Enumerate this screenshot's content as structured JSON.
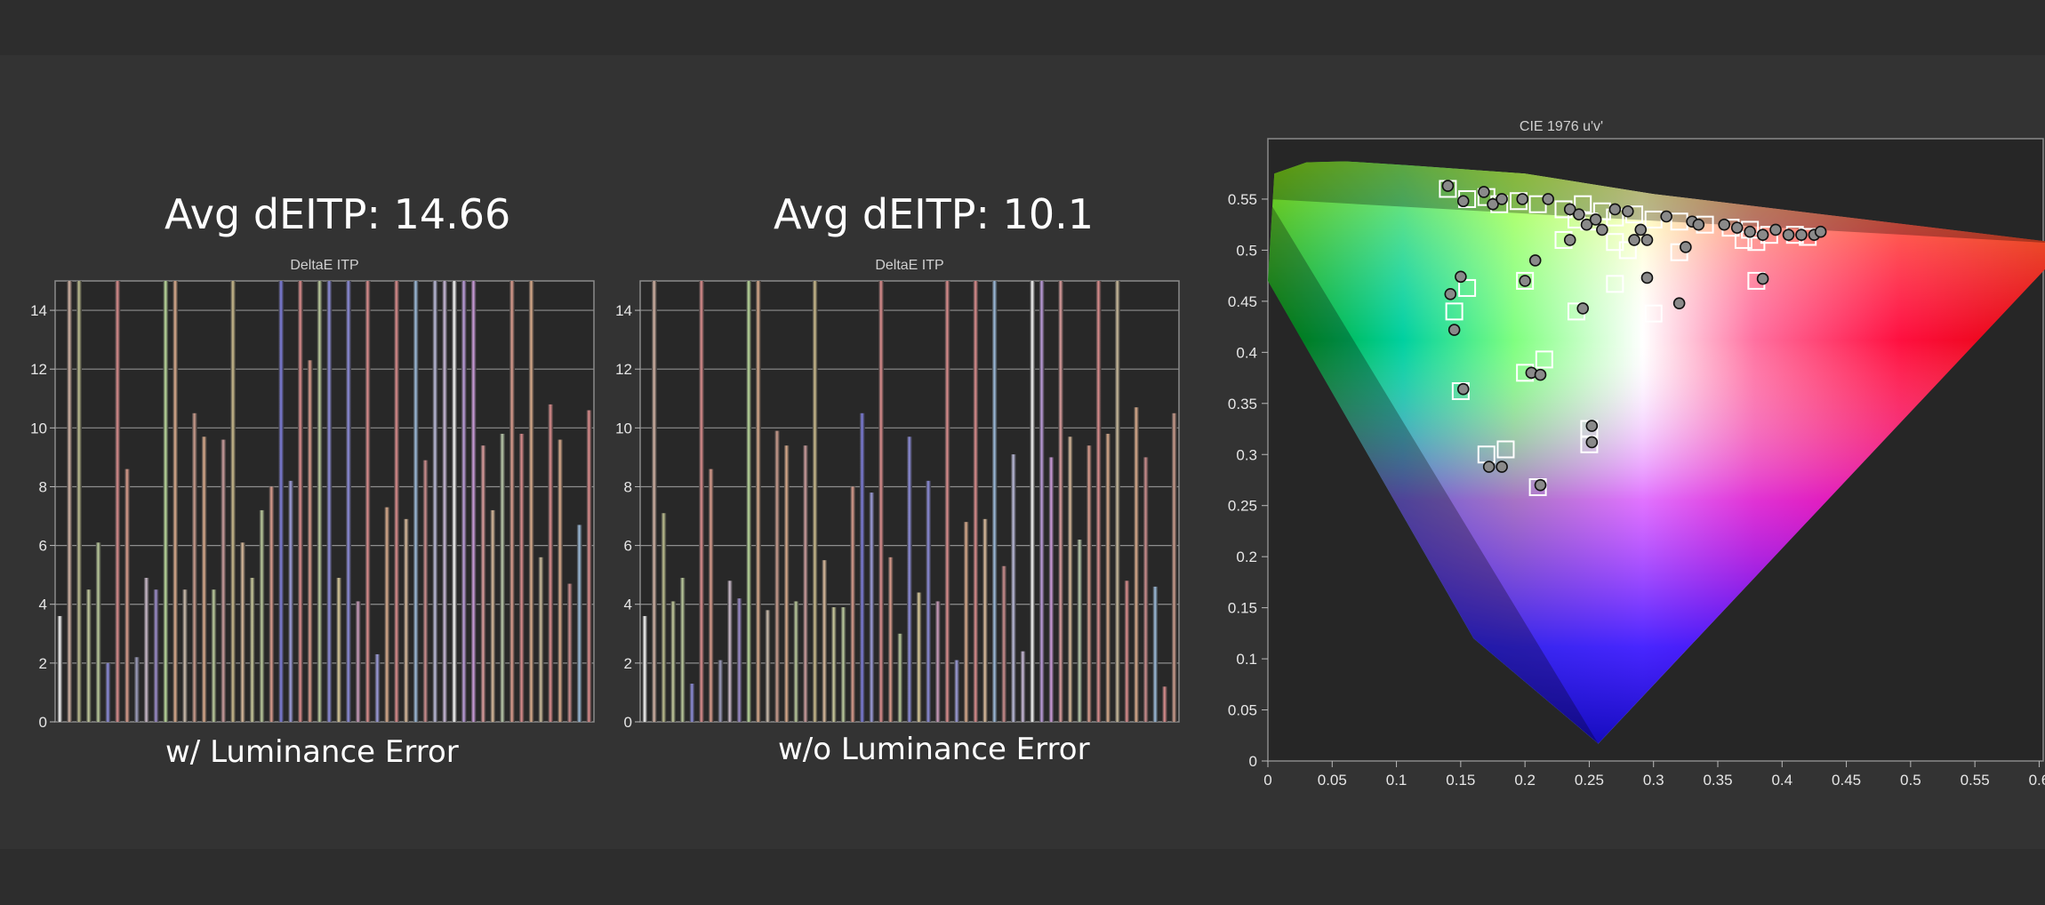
{
  "panels": [
    {
      "headline": "Avg dEITP: 14.66",
      "caption": "w/ Luminance Error"
    },
    {
      "headline": "Avg dEITP: 10.1",
      "caption": "w/o Luminance Error"
    }
  ],
  "chart_data": [
    {
      "type": "bar",
      "title": "DeltaE ITP",
      "xlabel": "",
      "ylabel": "",
      "ylim": [
        0,
        15
      ],
      "yticks": [
        0,
        2,
        4,
        6,
        8,
        10,
        12,
        14
      ],
      "grid": true,
      "values": [
        3.6,
        15,
        15,
        4.5,
        6.1,
        2.0,
        15,
        8.6,
        2.2,
        4.9,
        4.5,
        15,
        15,
        4.5,
        10.5,
        9.7,
        4.5,
        9.6,
        15,
        6.1,
        4.9,
        7.2,
        8.0,
        15,
        8.2,
        15,
        12.3,
        15,
        15,
        4.9,
        15,
        4.1,
        15,
        2.3,
        7.3,
        15,
        6.9,
        15,
        8.9,
        15,
        15,
        15,
        15,
        15,
        9.4,
        7.2,
        9.8,
        15,
        9.8,
        15,
        5.6,
        10.8,
        9.6,
        4.7,
        6.7,
        10.6
      ],
      "colors": [
        "#ffffff",
        "#d8b8a8",
        "#bfc090",
        "#c8d0a0",
        "#c0d0a0",
        "#9090e0",
        "#e09090",
        "#e0a090",
        "#a0a0c0",
        "#d0c0d0",
        "#a090d0",
        "#c0e0a0",
        "#e0b090",
        "#d0c0b0",
        "#d0a090",
        "#e0b090",
        "#c0d0a0",
        "#d0a0a0",
        "#d0c090",
        "#e0c0a0",
        "#d0d0a0",
        "#c0d0a0",
        "#e0a090",
        "#8080e0",
        "#a0a0e0",
        "#e09090",
        "#e0a090",
        "#c0d0a0",
        "#9090e0",
        "#e0d0a0",
        "#9090e0",
        "#d0a0c0",
        "#e09090",
        "#a0a0e0",
        "#e0b090",
        "#e09090",
        "#e0c0a0",
        "#a0c0e0",
        "#d09090",
        "#c0c0e0",
        "#d0c0e0",
        "#ffffff",
        "#c0a0e0",
        "#d0a0e0",
        "#e0a0a0",
        "#e0c0a0",
        "#c0d0b0",
        "#e0a090",
        "#e09090",
        "#e0b090",
        "#d0c0a0",
        "#e09090",
        "#e0b090",
        "#d09090",
        "#a0c0e0",
        "#e09090"
      ]
    },
    {
      "type": "bar",
      "title": "DeltaE ITP",
      "xlabel": "",
      "ylabel": "",
      "ylim": [
        0,
        15
      ],
      "yticks": [
        0,
        2,
        4,
        6,
        8,
        10,
        12,
        14
      ],
      "grid": true,
      "values": [
        3.6,
        15,
        7.1,
        4.1,
        4.9,
        1.3,
        15,
        8.6,
        2.1,
        4.8,
        4.2,
        15,
        15,
        3.8,
        9.9,
        9.4,
        4.1,
        9.4,
        15,
        5.5,
        3.9,
        3.9,
        8.0,
        10.5,
        7.8,
        15,
        5.6,
        3.0,
        9.7,
        4.4,
        8.2,
        4.1,
        15,
        2.1,
        6.8,
        15,
        6.9,
        15,
        5.3,
        9.1,
        2.4,
        15,
        15,
        9.0,
        15,
        9.7,
        6.2,
        9.4,
        15,
        9.8,
        15,
        4.8,
        10.7,
        9.0,
        4.6,
        1.2,
        10.5
      ],
      "colors": [
        "#ffffff",
        "#d8b8a8",
        "#bfc090",
        "#c8d0a0",
        "#c0d0a0",
        "#9090e0",
        "#e09090",
        "#e0a090",
        "#a0a0c0",
        "#d0c0d0",
        "#a090d0",
        "#c0e0a0",
        "#e0b090",
        "#d0c0b0",
        "#d0a090",
        "#e0b090",
        "#c0d0a0",
        "#d0a0a0",
        "#d0c090",
        "#e0c0a0",
        "#d0d0a0",
        "#c0d0a0",
        "#e0a090",
        "#8080e0",
        "#a0a0e0",
        "#e09090",
        "#e0a090",
        "#c0d0a0",
        "#9090e0",
        "#e0d0a0",
        "#9090e0",
        "#d0a0c0",
        "#e09090",
        "#a0a0e0",
        "#e0b090",
        "#e09090",
        "#e0c0a0",
        "#a0c0e0",
        "#d09090",
        "#c0c0e0",
        "#d0c0e0",
        "#ffffff",
        "#c0a0e0",
        "#d0a0e0",
        "#e0a0a0",
        "#e0c0a0",
        "#c0d0b0",
        "#e0a090",
        "#e09090",
        "#e0b090",
        "#d0c0a0",
        "#e09090",
        "#e0b090",
        "#d09090",
        "#a0c0e0",
        "#e09090",
        "#d0a090"
      ]
    },
    {
      "type": "scatter",
      "title": "CIE 1976 u'v'",
      "xlabel": "",
      "ylabel": "",
      "xlim": [
        0,
        0.63
      ],
      "ylim": [
        0,
        0.6
      ],
      "xticks": [
        0,
        0.05,
        0.1,
        0.15,
        0.2,
        0.25,
        0.3,
        0.35,
        0.4,
        0.45,
        0.5,
        0.55,
        0.6
      ],
      "xtick_labels": [
        "0",
        "0.05",
        "0.1",
        "0.15",
        "0.2",
        "0.25",
        "0.3",
        "0.35",
        "0.4",
        "0.45",
        "0.5",
        "0.55",
        "0.6"
      ],
      "yticks": [
        0,
        0.05,
        0.1,
        0.15,
        0.2,
        0.25,
        0.3,
        0.35,
        0.4,
        0.45,
        0.5,
        0.55
      ],
      "ytick_labels": [
        "0",
        "0.05",
        "0.1",
        "0.15",
        "0.2",
        "0.25",
        "0.3",
        "0.35",
        "0.4",
        "0.45",
        "0.5",
        "0.55"
      ],
      "gamut_triangle": [
        [
          0.623,
          0.506
        ],
        [
          0.257,
          0.017
        ],
        [
          0.0,
          0.55
        ]
      ],
      "locus": [
        [
          0.257,
          0.017
        ],
        [
          0.16,
          0.12
        ],
        [
          0.0,
          0.47
        ],
        [
          0.005,
          0.575
        ],
        [
          0.03,
          0.586
        ],
        [
          0.06,
          0.587
        ],
        [
          0.11,
          0.583
        ],
        [
          0.2,
          0.575
        ],
        [
          0.3,
          0.555
        ],
        [
          0.623,
          0.506
        ]
      ],
      "series": [
        {
          "marker": "square",
          "points": [
            [
              0.14,
              0.56
            ],
            [
              0.155,
              0.55
            ],
            [
              0.17,
              0.552
            ],
            [
              0.18,
              0.545
            ],
            [
              0.195,
              0.548
            ],
            [
              0.21,
              0.545
            ],
            [
              0.23,
              0.54
            ],
            [
              0.245,
              0.545
            ],
            [
              0.26,
              0.538
            ],
            [
              0.24,
              0.53
            ],
            [
              0.25,
              0.528
            ],
            [
              0.27,
              0.532
            ],
            [
              0.285,
              0.535
            ],
            [
              0.3,
              0.53
            ],
            [
              0.32,
              0.528
            ],
            [
              0.34,
              0.525
            ],
            [
              0.36,
              0.522
            ],
            [
              0.375,
              0.52
            ],
            [
              0.39,
              0.515
            ],
            [
              0.41,
              0.515
            ],
            [
              0.42,
              0.513
            ],
            [
              0.37,
              0.51
            ],
            [
              0.38,
              0.508
            ],
            [
              0.23,
              0.51
            ],
            [
              0.27,
              0.508
            ],
            [
              0.28,
              0.5
            ],
            [
              0.32,
              0.498
            ],
            [
              0.2,
              0.47
            ],
            [
              0.27,
              0.467
            ],
            [
              0.38,
              0.47
            ],
            [
              0.155,
              0.463
            ],
            [
              0.145,
              0.44
            ],
            [
              0.24,
              0.44
            ],
            [
              0.3,
              0.438
            ],
            [
              0.215,
              0.393
            ],
            [
              0.2,
              0.38
            ],
            [
              0.15,
              0.362
            ],
            [
              0.25,
              0.325
            ],
            [
              0.25,
              0.31
            ],
            [
              0.185,
              0.305
            ],
            [
              0.17,
              0.3
            ],
            [
              0.21,
              0.268
            ]
          ]
        },
        {
          "marker": "circle",
          "points": [
            [
              0.14,
              0.563
            ],
            [
              0.152,
              0.548
            ],
            [
              0.168,
              0.557
            ],
            [
              0.175,
              0.545
            ],
            [
              0.182,
              0.55
            ],
            [
              0.198,
              0.55
            ],
            [
              0.218,
              0.55
            ],
            [
              0.235,
              0.54
            ],
            [
              0.242,
              0.535
            ],
            [
              0.248,
              0.525
            ],
            [
              0.255,
              0.53
            ],
            [
              0.26,
              0.52
            ],
            [
              0.27,
              0.54
            ],
            [
              0.28,
              0.538
            ],
            [
              0.29,
              0.52
            ],
            [
              0.31,
              0.533
            ],
            [
              0.33,
              0.528
            ],
            [
              0.335,
              0.525
            ],
            [
              0.355,
              0.525
            ],
            [
              0.365,
              0.522
            ],
            [
              0.375,
              0.518
            ],
            [
              0.385,
              0.515
            ],
            [
              0.395,
              0.52
            ],
            [
              0.405,
              0.515
            ],
            [
              0.415,
              0.515
            ],
            [
              0.425,
              0.515
            ],
            [
              0.43,
              0.518
            ],
            [
              0.208,
              0.49
            ],
            [
              0.235,
              0.51
            ],
            [
              0.285,
              0.51
            ],
            [
              0.295,
              0.51
            ],
            [
              0.325,
              0.503
            ],
            [
              0.2,
              0.47
            ],
            [
              0.295,
              0.473
            ],
            [
              0.385,
              0.472
            ],
            [
              0.15,
              0.474
            ],
            [
              0.142,
              0.457
            ],
            [
              0.245,
              0.443
            ],
            [
              0.32,
              0.448
            ],
            [
              0.145,
              0.422
            ],
            [
              0.205,
              0.38
            ],
            [
              0.212,
              0.378
            ],
            [
              0.152,
              0.364
            ],
            [
              0.252,
              0.328
            ],
            [
              0.252,
              0.312
            ],
            [
              0.172,
              0.288
            ],
            [
              0.182,
              0.288
            ],
            [
              0.212,
              0.27
            ]
          ]
        }
      ]
    }
  ]
}
